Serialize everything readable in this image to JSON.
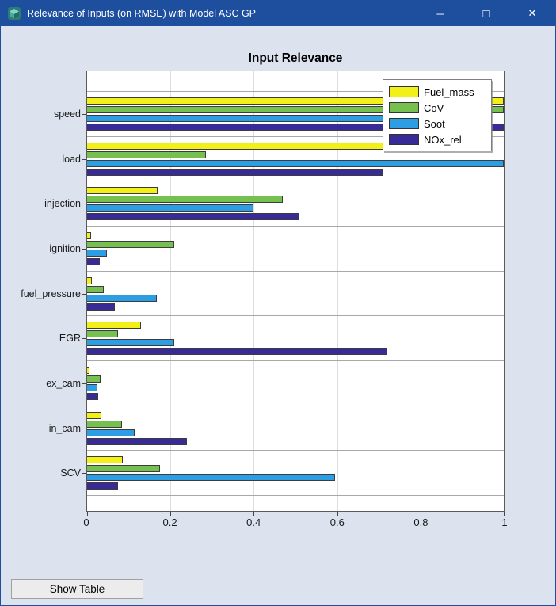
{
  "window": {
    "title": "Relevance of Inputs (on RMSE) with Model ASC GP",
    "controls": {
      "minimize_glyph": "─",
      "maximize_glyph": "□",
      "close_glyph": "✕"
    },
    "titlebar_color": "#1e4e9e",
    "background_color": "#dde3ee",
    "app_icon": "model-cube-icon",
    "app_icon_color": "#3d9189"
  },
  "chart": {
    "title": "Input Relevance"
  },
  "chart_data": {
    "type": "bar",
    "orientation": "horizontal",
    "title": "Input Relevance",
    "xlabel": "",
    "ylabel": "",
    "xlim": [
      0,
      1
    ],
    "xtick_labels": [
      "0",
      "0.2",
      "0.4",
      "0.6",
      "0.8",
      "1"
    ],
    "xticks": [
      0,
      0.2,
      0.4,
      0.6,
      0.8,
      1
    ],
    "grid": "vertical",
    "legend_position": "top-right-inside",
    "categories": [
      "speed",
      "load",
      "injection",
      "ignition",
      "fuel_pressure",
      "EGR",
      "ex_cam",
      "in_cam",
      "SCV"
    ],
    "series": [
      {
        "name": "Fuel_mass",
        "color": "#f3ef19",
        "values": [
          1.0,
          0.74,
          0.17,
          0.01,
          0.012,
          0.13,
          0.006,
          0.035,
          0.085
        ]
      },
      {
        "name": "CoV",
        "color": "#76c04f",
        "values": [
          1.0,
          0.285,
          0.47,
          0.21,
          0.04,
          0.075,
          0.033,
          0.083,
          0.175
        ]
      },
      {
        "name": "Soot",
        "color": "#2d9ee3",
        "values": [
          0.93,
          1.0,
          0.4,
          0.047,
          0.167,
          0.21,
          0.024,
          0.115,
          0.595
        ]
      },
      {
        "name": "NOx_rel",
        "color": "#382b97",
        "values": [
          1.0,
          0.71,
          0.51,
          0.03,
          0.067,
          0.72,
          0.026,
          0.24,
          0.075
        ]
      }
    ]
  },
  "footer": {
    "show_table_label": "Show Table"
  }
}
